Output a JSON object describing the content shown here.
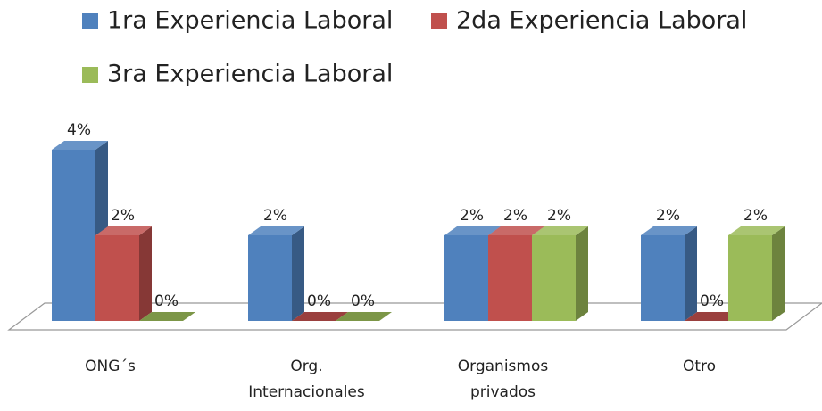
{
  "chart_data": {
    "type": "bar3d",
    "categories": [
      [
        "ONG´s"
      ],
      [
        "Org.",
        "Internacionales"
      ],
      [
        "Organismos",
        "privados"
      ],
      [
        "Otro"
      ]
    ],
    "series": [
      {
        "name": "1ra Experiencia Laboral",
        "color": "#4f81bd",
        "values": [
          4,
          2,
          2,
          2
        ],
        "value_labels": [
          "4%",
          "2%",
          "2%",
          "2%"
        ]
      },
      {
        "name": "2da Experiencia Laboral",
        "color": "#c0504d",
        "values": [
          2,
          0,
          2,
          0
        ],
        "value_labels": [
          "2%",
          "0%",
          "2%",
          "0%"
        ]
      },
      {
        "name": "3ra Experiencia Laboral",
        "color": "#9bbb59",
        "values": [
          0,
          0,
          2,
          2
        ],
        "value_labels": [
          "0%",
          "0%",
          "2%",
          "2%"
        ]
      }
    ],
    "legend": "top"
  }
}
